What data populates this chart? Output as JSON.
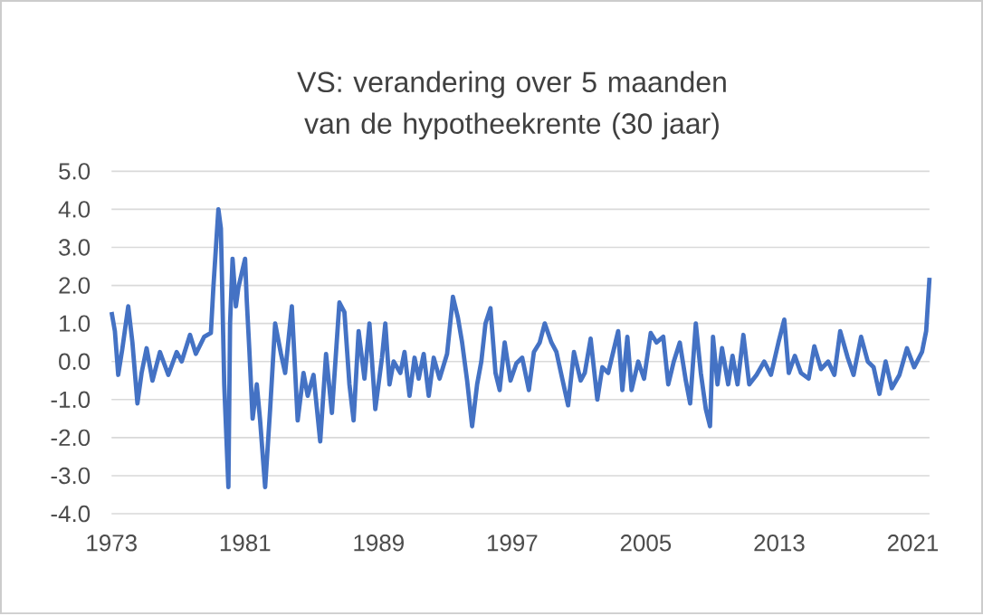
{
  "chart_data": {
    "type": "line",
    "title": "VS: verandering over 5 maanden van de hypotheekrente (30 jaar)",
    "xlim": [
      1973,
      2022
    ],
    "xticks": [
      1973,
      1981,
      1989,
      1997,
      2005,
      2013,
      2021
    ],
    "ylim": [
      -4,
      5
    ],
    "yticks": [
      {
        "value": -4,
        "label": "-4.0"
      },
      {
        "value": -3,
        "label": "-3.0"
      },
      {
        "value": -2,
        "label": "-2.0"
      },
      {
        "value": -1,
        "label": "-1.0"
      },
      {
        "value": 0,
        "label": "0.0"
      },
      {
        "value": 1,
        "label": "1.0"
      },
      {
        "value": 2,
        "label": "2.0"
      },
      {
        "value": 3,
        "label": "3.0"
      },
      {
        "value": 4,
        "label": "4.0"
      },
      {
        "value": 5,
        "label": "5.0"
      }
    ],
    "grid": "y",
    "marker": "none",
    "line_style": "solid",
    "series": [
      {
        "color": "#4472c4",
        "x": [
          1973.0,
          1973.2,
          1973.4,
          1973.65,
          1974.0,
          1974.25,
          1974.55,
          1974.8,
          1975.1,
          1975.45,
          1975.9,
          1976.4,
          1976.9,
          1977.2,
          1977.7,
          1978.05,
          1978.55,
          1978.95,
          1979.1,
          1979.4,
          1979.55,
          1979.75,
          1980.0,
          1980.1,
          1980.25,
          1980.45,
          1980.6,
          1981.0,
          1981.1,
          1981.25,
          1981.45,
          1981.7,
          1981.9,
          1982.2,
          1982.5,
          1982.8,
          1983.15,
          1983.4,
          1983.8,
          1984.15,
          1984.5,
          1984.75,
          1985.1,
          1985.5,
          1985.85,
          1986.2,
          1986.65,
          1986.95,
          1987.25,
          1987.5,
          1987.8,
          1988.15,
          1988.45,
          1988.8,
          1989.2,
          1989.4,
          1989.65,
          1989.9,
          1990.3,
          1990.55,
          1990.85,
          1991.15,
          1991.4,
          1991.7,
          1992.0,
          1992.3,
          1992.65,
          1993.1,
          1993.45,
          1993.75,
          1994.0,
          1994.3,
          1994.6,
          1994.9,
          1995.15,
          1995.4,
          1995.7,
          1996.0,
          1996.25,
          1996.55,
          1996.9,
          1997.25,
          1997.6,
          1998.0,
          1998.3,
          1998.65,
          1998.95,
          1999.35,
          1999.65,
          2000.0,
          2000.35,
          2000.7,
          2001.1,
          2001.35,
          2001.7,
          2002.1,
          2002.4,
          2002.75,
          2003.05,
          2003.35,
          2003.6,
          2003.9,
          2004.15,
          2004.55,
          2004.9,
          2005.3,
          2005.65,
          2006.05,
          2006.35,
          2006.68,
          2007.04,
          2007.4,
          2007.66,
          2008.0,
          2008.3,
          2008.6,
          2008.85,
          2009.03,
          2009.3,
          2009.57,
          2009.94,
          2010.2,
          2010.5,
          2010.85,
          2011.2,
          2011.64,
          2012.1,
          2012.5,
          2012.95,
          2013.3,
          2013.57,
          2013.93,
          2014.3,
          2014.76,
          2015.1,
          2015.5,
          2015.93,
          2016.3,
          2016.65,
          2017.1,
          2017.45,
          2017.9,
          2018.3,
          2018.65,
          2019.0,
          2019.37,
          2019.74,
          2020.2,
          2020.65,
          2021.08,
          2021.55,
          2021.8,
          2022.0
        ],
        "values": [
          1.3,
          0.8,
          -0.35,
          0.35,
          1.45,
          0.5,
          -1.1,
          -0.3,
          0.35,
          -0.5,
          0.25,
          -0.35,
          0.25,
          0.0,
          0.7,
          0.2,
          0.65,
          0.75,
          1.95,
          4.0,
          3.5,
          -0.6,
          -3.3,
          1.0,
          2.7,
          1.45,
          1.95,
          2.7,
          1.6,
          0.35,
          -1.5,
          -0.6,
          -1.55,
          -3.3,
          -1.25,
          1.0,
          0.2,
          -0.3,
          1.45,
          -1.55,
          -0.3,
          -0.9,
          -0.35,
          -2.1,
          0.2,
          -1.35,
          1.55,
          1.3,
          -0.6,
          -1.55,
          0.8,
          -0.45,
          1.0,
          -1.25,
          0.1,
          1.0,
          -0.6,
          0.0,
          -0.3,
          0.25,
          -0.9,
          0.1,
          -0.45,
          0.2,
          -0.9,
          0.1,
          -0.45,
          0.2,
          1.7,
          1.15,
          0.5,
          -0.5,
          -1.7,
          -0.6,
          0.0,
          1.0,
          1.4,
          -0.3,
          -0.75,
          0.5,
          -0.5,
          -0.05,
          0.1,
          -0.75,
          0.25,
          0.5,
          1.0,
          0.5,
          0.25,
          -0.45,
          -1.15,
          0.25,
          -0.5,
          -0.3,
          0.6,
          -1.0,
          -0.15,
          -0.3,
          0.25,
          0.8,
          -0.75,
          0.65,
          -0.75,
          0.0,
          -0.45,
          0.75,
          0.5,
          0.65,
          -0.6,
          0.0,
          0.5,
          -0.5,
          -1.1,
          1.0,
          -0.3,
          -1.25,
          -1.7,
          0.65,
          -0.6,
          0.35,
          -0.6,
          0.15,
          -0.6,
          0.7,
          -0.6,
          -0.35,
          0.0,
          -0.35,
          0.5,
          1.1,
          -0.3,
          0.15,
          -0.3,
          -0.45,
          0.4,
          -0.2,
          0.0,
          -0.35,
          0.8,
          0.1,
          -0.35,
          0.65,
          0.0,
          -0.15,
          -0.85,
          0.0,
          -0.7,
          -0.35,
          0.35,
          -0.15,
          0.25,
          0.8,
          2.2
        ]
      }
    ]
  }
}
